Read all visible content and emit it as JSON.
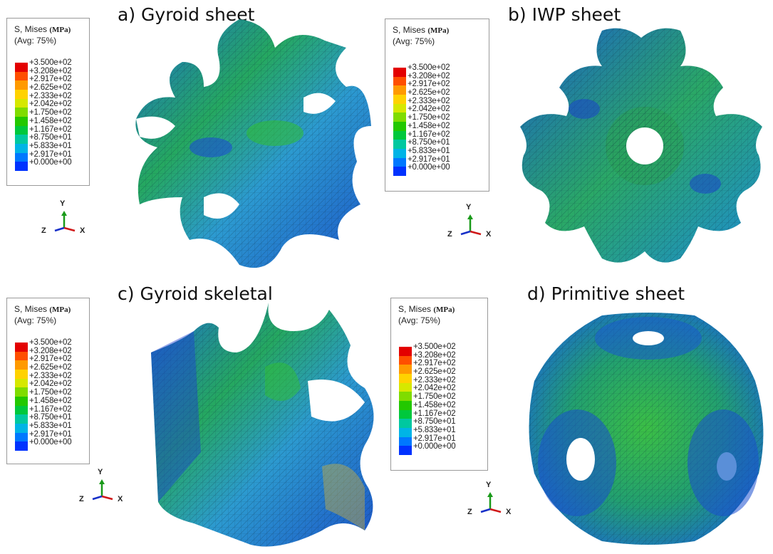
{
  "legend": {
    "title": "S, Mises",
    "unit": "(MPa)",
    "subtitle": "(Avg: 75%)",
    "ticks": [
      "+3.500e+02",
      "+3.208e+02",
      "+2.917e+02",
      "+2.625e+02",
      "+2.333e+02",
      "+2.042e+02",
      "+1.750e+02",
      "+1.458e+02",
      "+1.167e+02",
      "+8.750e+01",
      "+5.833e+01",
      "+2.917e+01",
      "+0.000e+00"
    ],
    "colors": [
      "#e30000",
      "#ff4f00",
      "#ff9a00",
      "#ffd200",
      "#d6e800",
      "#7fdc00",
      "#23c800",
      "#00c83c",
      "#00c8a0",
      "#00b4e6",
      "#0078ff",
      "#0032ff",
      "#0000b4"
    ]
  },
  "axes": {
    "y": "Y",
    "z": "Z",
    "x": "X"
  },
  "panels": [
    {
      "title": "a) Gyroid sheet"
    },
    {
      "title": "b) IWP sheet"
    },
    {
      "title": "c) Gyroid skeletal"
    },
    {
      "title": "d) Primitive sheet"
    }
  ]
}
